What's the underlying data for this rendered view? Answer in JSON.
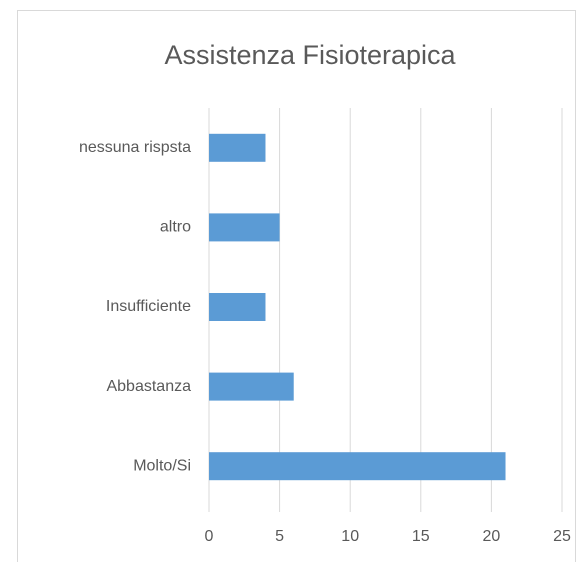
{
  "chart_data": {
    "type": "bar",
    "orientation": "horizontal",
    "title": "Assistenza Fisioterapica",
    "categories": [
      "Molto/Si",
      "Abbastanza",
      "Insufficiente",
      "altro",
      "nessuna rispsta"
    ],
    "values": [
      21,
      6,
      4,
      5,
      4
    ],
    "color": "#5b9bd5",
    "xlim": [
      0,
      25
    ],
    "xticks": [
      0,
      5,
      10,
      15,
      20,
      25
    ],
    "grid": true
  }
}
